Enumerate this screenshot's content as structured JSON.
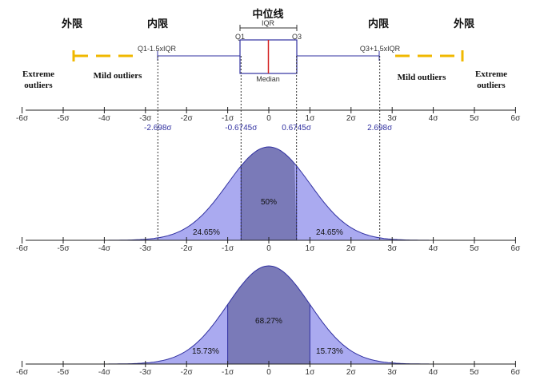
{
  "labels": {
    "outer_fence_left": "外限",
    "inner_fence_left": "内限",
    "median_line_title": "中位线",
    "inner_fence_right": "内限",
    "outer_fence_right": "外限",
    "iqr": "IQR",
    "q1": "Q1",
    "q3": "Q3",
    "median": "Median",
    "lower_whisker": "Q1-1.5xIQR",
    "upper_whisker": "Q3+1.5xIQR",
    "extreme_outliers_left": [
      "Extreme",
      "outliers"
    ],
    "extreme_outliers_right": [
      "Extreme",
      "outliers"
    ],
    "mild_outliers_left": "Mild outliers",
    "mild_outliers_right": "Mild outliers"
  },
  "sigma_ticks": [
    "-6σ",
    "-5σ",
    "-4σ",
    "-3σ",
    "-2σ",
    "-1σ",
    "0",
    "1σ",
    "2σ",
    "3σ",
    "4σ",
    "5σ",
    "6σ"
  ],
  "sigma_values": [
    -6,
    -5,
    -4,
    -3,
    -2,
    -1,
    0,
    1,
    2,
    3,
    4,
    5,
    6
  ],
  "quantile_markers": [
    {
      "label": "-2.698σ",
      "value": -2.698
    },
    {
      "label": "-0.6745σ",
      "value": -0.6745
    },
    {
      "label": "0.6745σ",
      "value": 0.6745
    },
    {
      "label": "2.698σ",
      "value": 2.698
    }
  ],
  "panel_iqr": {
    "center_label": "50%",
    "left_tail_label": "24.65%",
    "right_tail_label": "24.65%",
    "band": [
      -0.6745,
      0.6745
    ]
  },
  "panel_sigma": {
    "center_label": "68.27%",
    "left_tail_label": "15.73%",
    "right_tail_label": "15.73%",
    "band": [
      -1,
      1
    ]
  },
  "colors": {
    "fill_light": "#aaaaf0",
    "fill_dark": "#7a7ab8",
    "curve": "#3030a0",
    "median": "#d42020",
    "fence": "#f0b800",
    "blue_text": "#3030a0"
  }
}
